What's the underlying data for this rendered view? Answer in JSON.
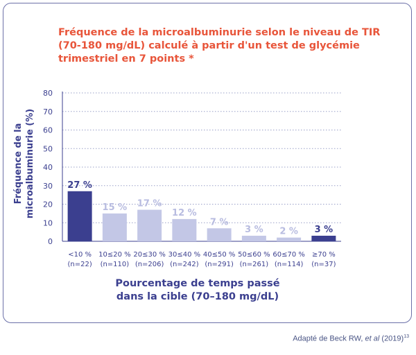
{
  "chart_data": {
    "type": "bar",
    "title": "Fréquence de la microalbuminurie selon le niveau de TIR (70-180 mg/dL) calculé à partir d'un test de glycémie trimestriel en 7 points *",
    "ylabel_lines": [
      "Fréquence de la",
      "microalbuminurie (%)"
    ],
    "xlabel_lines": [
      "Pourcentage de temps passé",
      "dans la cible (70–180 mg/dL)"
    ],
    "categories": [
      [
        "<10 %",
        "(n=22)"
      ],
      [
        "10≤20 %",
        "(n=110)"
      ],
      [
        "20≤30 %",
        "(n=206)"
      ],
      [
        "30≤40 %",
        "(n=242)"
      ],
      [
        "40≤50 %",
        "(n=291)"
      ],
      [
        "50≤60 %",
        "(n=261)"
      ],
      [
        "60≤70 %",
        "(n=114)"
      ],
      [
        "≥70 %",
        "(n=37)"
      ]
    ],
    "values": [
      27,
      15,
      17,
      12,
      7,
      3,
      2,
      3
    ],
    "value_labels": [
      "27 %",
      "15 %",
      "17 %",
      "12 %",
      "7 %",
      "3 %",
      "2 %",
      "3 %"
    ],
    "yticks": [
      "0",
      "10",
      "20",
      "30",
      "40",
      "50",
      "60",
      "70",
      "80"
    ],
    "ylim": [
      0,
      80
    ],
    "grid": true,
    "bar_colors": [
      "#3b3f8f",
      "#c3c7e6",
      "#c3c7e6",
      "#c3c7e6",
      "#c3c7e6",
      "#c3c7e6",
      "#c3c7e6",
      "#3b3f8f"
    ],
    "label_colors": [
      "#3b3f8f",
      "#b8bce0",
      "#b8bce0",
      "#b8bce0",
      "#b8bce0",
      "#b8bce0",
      "#b8bce0",
      "#3b3f8f"
    ]
  },
  "source": {
    "prefix": "Adapté de Beck RW, ",
    "etal": "et al",
    "year": " (2019)",
    "ref": "13"
  }
}
